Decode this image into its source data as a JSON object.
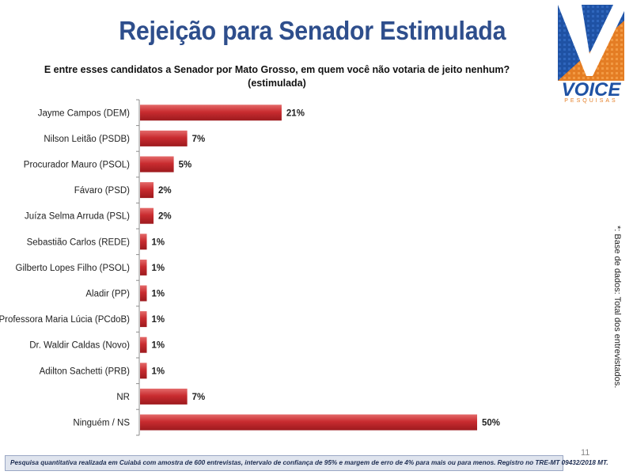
{
  "slide": {
    "title": "Rejeição para Senador Estimulada",
    "subtitle": "E entre esses candidatos a Senador por Mato Grosso, em quem você não votaria de jeito nenhum?",
    "subtitle2": "(estimulada)",
    "side_note": "*: Base de dados: Total dos  entrevistados.",
    "footer": "Pesquisa quantitativa realizada em Cuiabá com  amostra de 600 entrevistas, intervalo de confiança de 95% e margem de erro de 4% para mais ou para menos. Registro no TRE-MT 09432/2018 MT.",
    "page_number": "11"
  },
  "logo": {
    "name": "VOICE",
    "sub": "PESQUISAS",
    "colors": {
      "blue": "#1f52a4",
      "orange": "#e47d24"
    }
  },
  "colors": {
    "bar": "#c0282c",
    "bar_light": "#e26a6a",
    "title": "#2e4e8c"
  },
  "chart_data": {
    "type": "bar",
    "orientation": "horizontal",
    "categories": [
      "Jayme Campos (DEM)",
      "Nilson Leitão (PSDB)",
      "Procurador Mauro (PSOL)",
      "Fávaro (PSD)",
      "Juíza Selma Arruda (PSL)",
      "Sebastião Carlos (REDE)",
      "Gilberto Lopes Filho (PSOL)",
      "Aladir (PP)",
      "Professora Maria Lúcia (PCdoB)",
      "Dr. Waldir Caldas (Novo)",
      "Adilton Sachetti (PRB)",
      "NR",
      "Ninguém / NS"
    ],
    "values": [
      21,
      7,
      5,
      2,
      2,
      1,
      1,
      1,
      1,
      1,
      1,
      7,
      50
    ],
    "labels": [
      "21%",
      "7%",
      "5%",
      "2%",
      "2%",
      "1%",
      "1%",
      "1%",
      "1%",
      "1%",
      "1%",
      "7%",
      "50%"
    ],
    "xlim": [
      0,
      50
    ],
    "grid": false,
    "legend": "none"
  }
}
